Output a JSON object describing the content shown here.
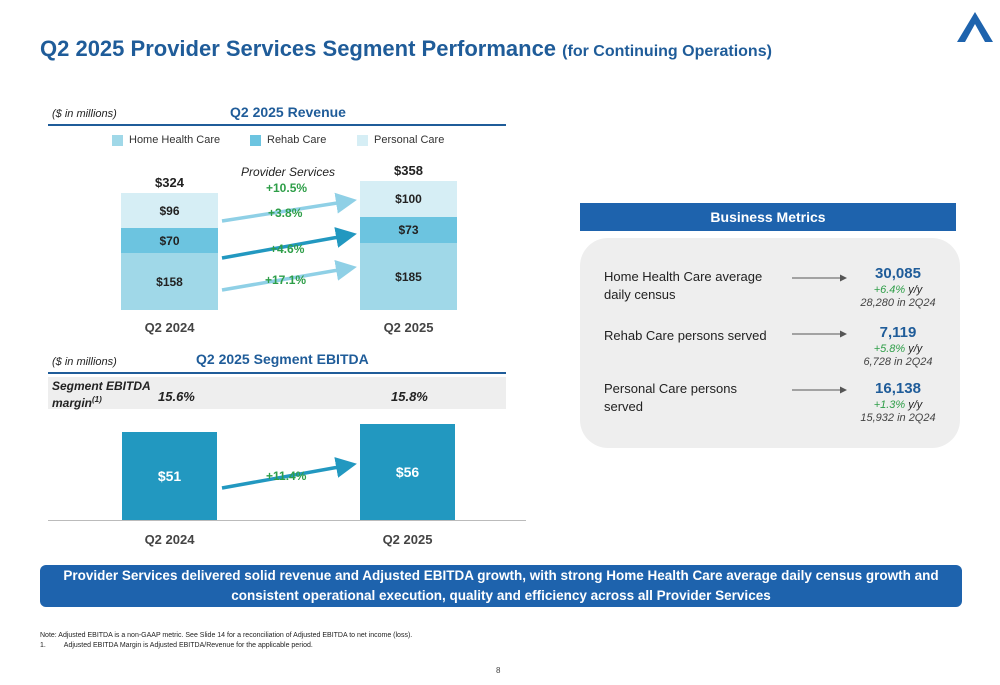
{
  "header": {
    "title": "Q2 2025 Provider Services Segment Performance",
    "subtitle": "(for Continuing Operations)"
  },
  "colors": {
    "home_health_care": "#a0d8e8",
    "rehab_care": "#6cc4e0",
    "personal_care": "#d6eef5",
    "ebitda_bar": "#2298c0",
    "growth_green": "#2e9e48",
    "brand_blue": "#1e63ad"
  },
  "icons": {
    "logo": "aveanna-a-logo-icon"
  },
  "revenue": {
    "unit": "($ in millions)",
    "title": "Q2 2025 Revenue",
    "provider_services_label": "Provider Services",
    "provider_services_growth": "+10.5%"
  },
  "ebitda": {
    "unit": "($ in millions)",
    "title": "Q2 2025 Segment EBITDA",
    "margin_label": "Segment EBITDA margin",
    "margin_footnote": "(1)",
    "margins": [
      "15.6%",
      "15.8%"
    ]
  },
  "chart_data": [
    {
      "type": "bar",
      "stacked": true,
      "title": "Q2 2025 Revenue",
      "categories": [
        "Q2 2024",
        "Q2 2025"
      ],
      "series": [
        {
          "name": "Home Health Care",
          "values": [
            158,
            185
          ],
          "labels": [
            "$158",
            "$185"
          ],
          "growth": "+17.1%"
        },
        {
          "name": "Rehab Care",
          "values": [
            70,
            73
          ],
          "labels": [
            "$70",
            "$73"
          ],
          "growth": "+4.6%"
        },
        {
          "name": "Personal Care",
          "values": [
            96,
            100
          ],
          "labels": [
            "$96",
            "$100"
          ],
          "growth": "+3.8%"
        }
      ],
      "totals": [
        324,
        358
      ],
      "total_labels": [
        "$324",
        "$358"
      ],
      "legend": "top"
    },
    {
      "type": "bar",
      "title": "Q2 2025 Segment EBITDA",
      "categories": [
        "Q2 2024",
        "Q2 2025"
      ],
      "values": [
        51,
        56
      ],
      "labels": [
        "$51",
        "$56"
      ],
      "growth": "+11.4%"
    }
  ],
  "business_metrics": {
    "title": "Business Metrics",
    "items": [
      {
        "label": "Home Health Care average daily census",
        "value": "30,085",
        "growth": "+6.4%",
        "yy": "y/y",
        "prior": "28,280 in 2Q24"
      },
      {
        "label": "Rehab Care persons served",
        "value": "7,119",
        "growth": "+5.8%",
        "yy": "y/y",
        "prior": "6,728 in 2Q24"
      },
      {
        "label": "Personal Care persons served",
        "value": "16,138",
        "growth": "+1.3%",
        "yy": "y/y",
        "prior": "15,932 in 2Q24"
      }
    ]
  },
  "banner": "Provider Services delivered solid revenue and Adjusted EBITDA growth, with strong Home Health Care average daily census growth and consistent operational execution, quality and efficiency across all Provider Services",
  "notes": {
    "note": "Note: Adjusted EBITDA is a non-GAAP metric. See Slide 14 for a reconciliation of Adjusted EBITDA to net income (loss).",
    "footnote_num": "1.",
    "footnote": "Adjusted EBITDA Margin is Adjusted EBITDA/Revenue for the applicable period."
  },
  "page_number": "8"
}
